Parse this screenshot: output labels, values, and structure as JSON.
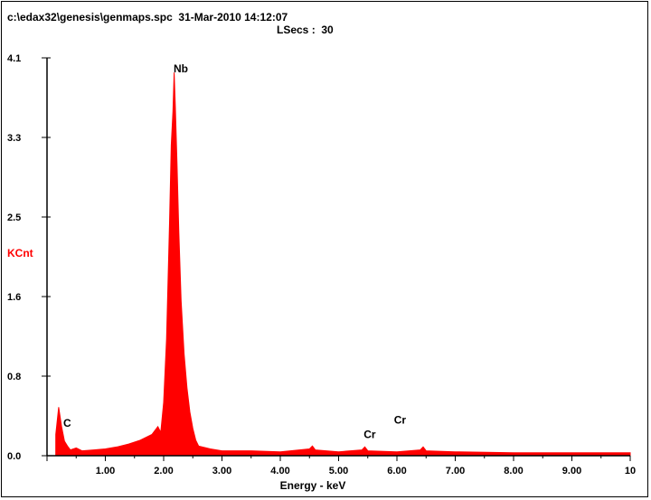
{
  "header": {
    "file_info": "c:\\edax32\\genesis\\genmaps.spc  31-Mar-2010 14:12:07",
    "lsecs": "LSecs :  30"
  },
  "colors": {
    "spectrum": "#ff0000",
    "axis": "#000000",
    "ylabel": "#ff0000"
  },
  "chart_data": {
    "type": "area",
    "xlabel": "Energy - keV",
    "ylabel": "KCnt",
    "xlim": [
      0,
      10
    ],
    "ylim": [
      0,
      4.1
    ],
    "x_ticks": [
      "1.00",
      "2.00",
      "3.00",
      "4.00",
      "5.00",
      "6.00",
      "7.00",
      "8.00",
      "9.00",
      "10"
    ],
    "y_ticks": [
      "0.0",
      "0.8",
      "1.6",
      "2.5",
      "3.3",
      "4.1"
    ],
    "peak_labels": [
      {
        "label": "C",
        "x": 0.28,
        "y": 0.3
      },
      {
        "label": "Nb",
        "x": 2.17,
        "y": 3.95
      },
      {
        "label": "Cr",
        "x": 5.43,
        "y": 0.18
      },
      {
        "label": "Cr",
        "x": 5.95,
        "y": 0.33
      }
    ],
    "x": [
      0.15,
      0.2,
      0.25,
      0.3,
      0.35,
      0.4,
      0.5,
      0.6,
      0.8,
      1.0,
      1.2,
      1.4,
      1.6,
      1.8,
      1.9,
      1.95,
      2.0,
      2.05,
      2.1,
      2.13,
      2.16,
      2.18,
      2.2,
      2.23,
      2.26,
      2.3,
      2.35,
      2.4,
      2.45,
      2.5,
      2.55,
      2.6,
      2.8,
      3.0,
      3.5,
      4.0,
      4.5,
      4.55,
      4.6,
      5.0,
      5.4,
      5.45,
      5.5,
      6.0,
      6.4,
      6.45,
      6.5,
      7.0,
      8.0,
      9.0,
      10.0
    ],
    "values": [
      0.22,
      0.5,
      0.3,
      0.15,
      0.1,
      0.06,
      0.08,
      0.05,
      0.06,
      0.07,
      0.09,
      0.12,
      0.16,
      0.22,
      0.3,
      0.24,
      0.55,
      1.2,
      2.4,
      3.2,
      3.55,
      3.95,
      3.6,
      3.0,
      2.3,
      1.6,
      1.05,
      0.7,
      0.45,
      0.28,
      0.16,
      0.1,
      0.07,
      0.05,
      0.05,
      0.04,
      0.07,
      0.1,
      0.06,
      0.04,
      0.06,
      0.09,
      0.05,
      0.04,
      0.06,
      0.09,
      0.05,
      0.04,
      0.03,
      0.03,
      0.03
    ]
  }
}
